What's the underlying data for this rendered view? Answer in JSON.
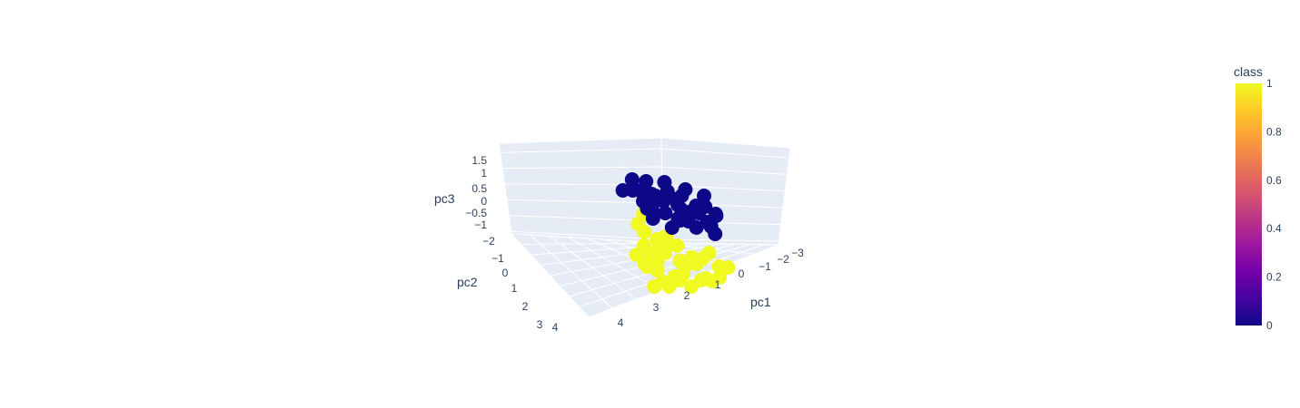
{
  "chart_data": {
    "type": "scatter",
    "scatter_3d": true,
    "title": "",
    "axes": {
      "x": {
        "label": "pc1",
        "ticks": [
          "−3",
          "−2",
          "−1",
          "0",
          "1",
          "2",
          "3",
          "4"
        ],
        "range": [
          -3,
          4
        ]
      },
      "y": {
        "label": "pc2",
        "ticks": [
          "−2",
          "−1",
          "0",
          "1",
          "2",
          "3",
          "4"
        ],
        "range": [
          -2,
          4
        ]
      },
      "z": {
        "label": "pc3",
        "ticks": [
          "−1",
          "−0.5",
          "0",
          "0.5",
          "1",
          "1.5"
        ],
        "range": [
          -1.1,
          1.8
        ]
      }
    },
    "colorbar": {
      "title": "class",
      "ticks": [
        "0",
        "0.2",
        "0.4",
        "0.6",
        "0.8",
        "1"
      ],
      "range": [
        0,
        1
      ],
      "colorscale": [
        "#0d0887",
        "#46039f",
        "#7201a8",
        "#9c179e",
        "#bd3786",
        "#d8576b",
        "#ed7953",
        "#fb9f3a",
        "#fdca26",
        "#f0f921"
      ]
    },
    "series": [
      {
        "class": 0,
        "color": "#0d0887",
        "points": [
          [
            -1.8,
            0.5,
            1.2
          ],
          [
            -1.5,
            0.3,
            1.0
          ],
          [
            -1.2,
            0.6,
            0.9
          ],
          [
            -0.9,
            0.2,
            1.1
          ],
          [
            -0.6,
            0.4,
            0.8
          ],
          [
            -0.3,
            0.1,
            1.0
          ],
          [
            0.0,
            0.5,
            0.9
          ],
          [
            0.3,
            0.2,
            0.7
          ],
          [
            0.6,
            0.4,
            0.8
          ],
          [
            0.9,
            0.1,
            0.6
          ],
          [
            -2.1,
            -0.1,
            1.3
          ],
          [
            -1.9,
            0.8,
            0.7
          ],
          [
            -1.3,
            -0.2,
            1.2
          ],
          [
            -0.8,
            0.9,
            0.6
          ],
          [
            -0.4,
            -0.3,
            1.1
          ],
          [
            0.2,
            0.8,
            0.5
          ],
          [
            0.5,
            -0.2,
            0.9
          ],
          [
            1.1,
            0.6,
            0.5
          ],
          [
            1.4,
            0.3,
            0.6
          ],
          [
            -2.4,
            0.3,
            1.0
          ],
          [
            -1.0,
            0.0,
            0.5
          ],
          [
            -0.5,
            0.6,
            0.4
          ],
          [
            0.1,
            -0.1,
            0.4
          ],
          [
            0.7,
            0.7,
            0.3
          ],
          [
            -1.6,
            1.0,
            0.9
          ],
          [
            -2.6,
            0.0,
            0.8
          ],
          [
            -1.1,
            1.2,
            1.2
          ],
          [
            0.4,
            1.0,
            1.0
          ],
          [
            1.2,
            -0.1,
            0.8
          ],
          [
            -0.2,
            1.3,
            0.7
          ],
          [
            -1.4,
            0.5,
            0.3
          ],
          [
            -0.7,
            -0.4,
            0.6
          ],
          [
            0.8,
            0.4,
            0.2
          ],
          [
            1.6,
            0.8,
            0.9
          ],
          [
            -2.2,
            0.6,
            0.4
          ],
          [
            1.0,
            1.2,
            0.3
          ],
          [
            -0.1,
            -0.5,
            0.2
          ],
          [
            -1.7,
            -0.3,
            0.5
          ],
          [
            0.3,
            1.5,
            0.4
          ],
          [
            1.8,
            0.2,
            0.4
          ]
        ]
      },
      {
        "class": 1,
        "color": "#f0f921",
        "points": [
          [
            0.5,
            1.5,
            -0.3
          ],
          [
            0.8,
            1.8,
            -0.5
          ],
          [
            1.1,
            2.0,
            -0.2
          ],
          [
            1.4,
            2.3,
            -0.6
          ],
          [
            1.7,
            2.5,
            -0.4
          ],
          [
            2.0,
            2.8,
            -0.3
          ],
          [
            2.3,
            3.0,
            -0.7
          ],
          [
            2.6,
            3.3,
            -0.5
          ],
          [
            0.2,
            2.2,
            -0.8
          ],
          [
            0.6,
            2.6,
            -0.9
          ],
          [
            1.0,
            2.9,
            -0.7
          ],
          [
            1.5,
            3.2,
            -0.9
          ],
          [
            1.9,
            3.5,
            -0.8
          ],
          [
            2.4,
            3.7,
            -1.0
          ],
          [
            -0.2,
            1.8,
            -0.6
          ],
          [
            -0.6,
            1.5,
            -0.4
          ],
          [
            -1.0,
            1.2,
            -0.7
          ],
          [
            -1.4,
            1.0,
            -0.5
          ],
          [
            -1.8,
            0.8,
            -0.3
          ],
          [
            -2.2,
            0.9,
            -0.6
          ],
          [
            2.8,
            3.6,
            0.8
          ],
          [
            3.0,
            3.9,
            0.4
          ],
          [
            2.7,
            3.4,
            0.2
          ],
          [
            3.2,
            3.8,
            1.1
          ],
          [
            2.5,
            3.1,
            1.3
          ],
          [
            1.2,
            2.4,
            0.1
          ],
          [
            0.9,
            2.1,
            0.3
          ],
          [
            1.6,
            2.7,
            0.0
          ],
          [
            2.1,
            3.2,
            -0.1
          ],
          [
            0.3,
            1.9,
            0.0
          ],
          [
            -0.4,
            2.1,
            -0.2
          ],
          [
            -1.2,
            1.6,
            -0.9
          ],
          [
            -2.0,
            1.3,
            -0.8
          ],
          [
            -2.5,
            1.1,
            -0.4
          ],
          [
            0.0,
            2.5,
            -1.0
          ],
          [
            1.3,
            3.0,
            -1.1
          ],
          [
            2.2,
            3.6,
            -0.4
          ],
          [
            3.1,
            3.5,
            -0.2
          ],
          [
            2.9,
            3.7,
            1.5
          ],
          [
            1.8,
            2.9,
            0.4
          ],
          [
            -1.6,
            1.4,
            -1.0
          ],
          [
            -0.8,
            1.9,
            -0.9
          ],
          [
            0.7,
            2.8,
            -0.1
          ],
          [
            2.6,
            3.9,
            0.0
          ]
        ]
      }
    ],
    "camera": "default-perspective",
    "background": "#e5ecf6",
    "grid": true
  }
}
